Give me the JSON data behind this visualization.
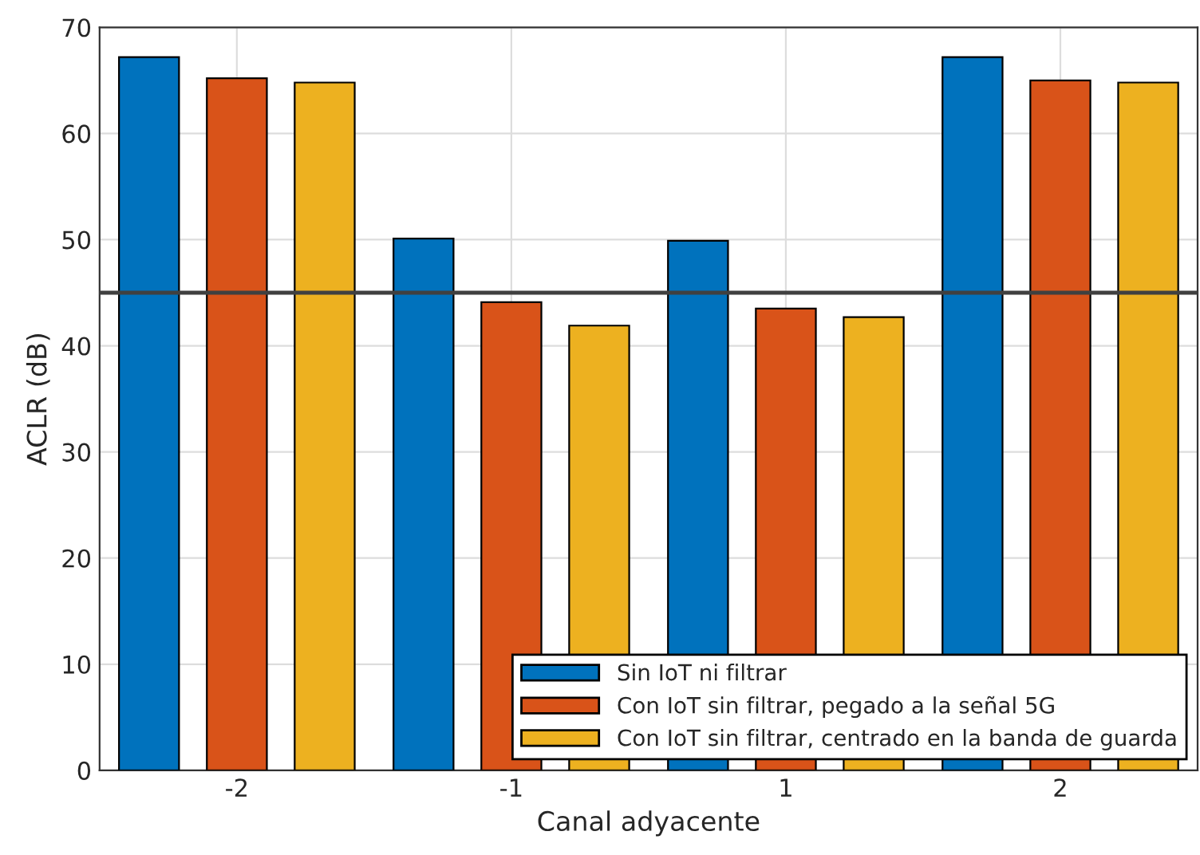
{
  "chart_data": {
    "type": "bar",
    "xlabel": "Canal adyacente",
    "ylabel": "ACLR (dB)",
    "categories": [
      "-2",
      "-1",
      "1",
      "2"
    ],
    "series": [
      {
        "name": "Sin IoT ni filtrar",
        "color": "#0072bd",
        "values": [
          67.2,
          50.1,
          49.9,
          67.2
        ]
      },
      {
        "name": "Con IoT sin filtrar, pegado a la señal 5G",
        "color": "#d95319",
        "values": [
          65.2,
          44.1,
          43.5,
          65.0
        ]
      },
      {
        "name": "Con IoT sin filtrar, centrado en la banda de guarda",
        "color": "#edb120",
        "values": [
          64.8,
          41.9,
          42.7,
          64.8
        ]
      }
    ],
    "ylim": [
      0,
      70
    ],
    "yticks": [
      0,
      10,
      20,
      30,
      40,
      50,
      60,
      70
    ],
    "ref_lines": [
      {
        "axis": "y",
        "value": 45,
        "color": "#404040"
      }
    ],
    "grid": true,
    "legend": "bottom right"
  }
}
